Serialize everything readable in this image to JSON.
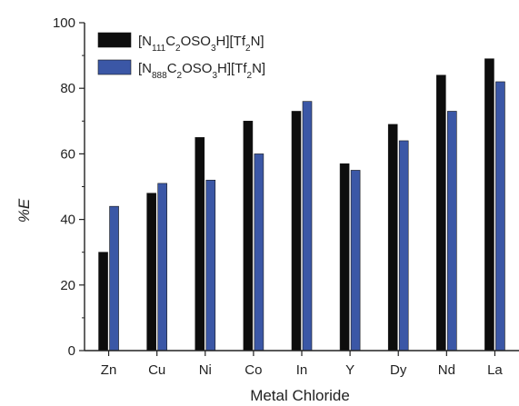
{
  "chart_data": {
    "type": "bar",
    "xlabel": "Metal Chloride",
    "ylabel": "%E",
    "ylim": [
      0,
      100
    ],
    "yticks": [
      0,
      20,
      40,
      60,
      80,
      100
    ],
    "categories": [
      "Zn",
      "Cu",
      "Ni",
      "Co",
      "In",
      "Y",
      "Dy",
      "Nd",
      "La"
    ],
    "series": [
      {
        "name": "[N111C2OSO3H][Tf2N]",
        "color": "#0d0d0d",
        "legend_parts": [
          {
            "t": "[N",
            "sub": false
          },
          {
            "t": "111",
            "sub": true
          },
          {
            "t": "C",
            "sub": false
          },
          {
            "t": "2",
            "sub": true
          },
          {
            "t": "OSO",
            "sub": false
          },
          {
            "t": "3",
            "sub": true
          },
          {
            "t": "H][Tf",
            "sub": false
          },
          {
            "t": "2",
            "sub": true
          },
          {
            "t": "N]",
            "sub": false
          }
        ],
        "values": [
          30,
          48,
          65,
          70,
          73,
          57,
          69,
          84,
          89
        ]
      },
      {
        "name": "[N888C2OSO3H][Tf2N]",
        "color": "#3b57a6",
        "legend_parts": [
          {
            "t": "[N",
            "sub": false
          },
          {
            "t": "888",
            "sub": true
          },
          {
            "t": "C",
            "sub": false
          },
          {
            "t": "2",
            "sub": true
          },
          {
            "t": "OSO",
            "sub": false
          },
          {
            "t": "3",
            "sub": true
          },
          {
            "t": "H][Tf",
            "sub": false
          },
          {
            "t": "2",
            "sub": true
          },
          {
            "t": "N]",
            "sub": false
          }
        ],
        "values": [
          44,
          51,
          52,
          60,
          76,
          55,
          64,
          73,
          82
        ]
      }
    ],
    "legend_position": "top-left",
    "grid": false
  }
}
